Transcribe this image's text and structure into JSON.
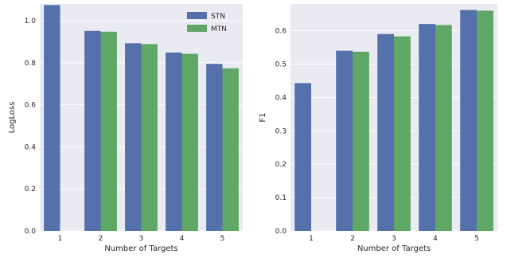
{
  "colors": {
    "STN": "#5471ab",
    "MTN": "#5ea765",
    "panel_bg": "#eaeaf2",
    "grid": "#ffffff"
  },
  "chart_data": [
    {
      "type": "bar",
      "title": "",
      "xlabel": "Number of Targets",
      "ylabel": "LogLoss",
      "categories": [
        "1",
        "2",
        "3",
        "4",
        "5"
      ],
      "ylim": [
        0,
        1.08
      ],
      "yticks": [
        0.0,
        0.2,
        0.4,
        0.6,
        0.8,
        1.0
      ],
      "ytick_labels": [
        "0.0",
        "0.2",
        "0.4",
        "0.6",
        "0.8",
        "1.0"
      ],
      "grid": true,
      "legend": {
        "placement": "top-right",
        "entries": [
          "STN",
          "MTN"
        ]
      },
      "series": [
        {
          "name": "STN",
          "values": [
            1.075,
            0.952,
            0.893,
            0.849,
            0.795
          ]
        },
        {
          "name": "MTN",
          "values": [
            null,
            0.948,
            0.889,
            0.843,
            0.774
          ]
        }
      ]
    },
    {
      "type": "bar",
      "title": "",
      "xlabel": "Number of Targets",
      "ylabel": "F1",
      "categories": [
        "1",
        "2",
        "3",
        "4",
        "5"
      ],
      "ylim": [
        0,
        0.68
      ],
      "yticks": [
        0.0,
        0.1,
        0.2,
        0.3,
        0.4,
        0.5,
        0.6
      ],
      "ytick_labels": [
        "0.0",
        "0.1",
        "0.2",
        "0.3",
        "0.4",
        "0.5",
        "0.6"
      ],
      "grid": true,
      "series": [
        {
          "name": "STN",
          "values": [
            0.443,
            0.54,
            0.59,
            0.62,
            0.662
          ]
        },
        {
          "name": "MTN",
          "values": [
            null,
            0.537,
            0.583,
            0.617,
            0.66
          ]
        }
      ]
    }
  ]
}
